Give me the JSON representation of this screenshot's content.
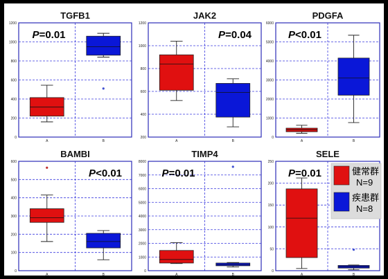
{
  "colors": {
    "group_a": "#e01010",
    "group_b": "#0a17d8",
    "frame": "#2c2cb8",
    "grid": "#3a3adf",
    "legend_bg": "#dcdcdc"
  },
  "legend": {
    "items": [
      {
        "label": "健常群",
        "n": "N=9",
        "color": "#e01010"
      },
      {
        "label": "疾患群",
        "n": "N=8",
        "color": "#0a17d8"
      }
    ]
  },
  "chart_data": [
    {
      "type": "box",
      "title": "TGFB1",
      "pvalue": "P=0.01",
      "pvalue_pos": "top-left",
      "ylim": [
        0,
        1200
      ],
      "yticks": [
        0,
        200,
        400,
        600,
        800,
        1000,
        1200
      ],
      "categories": [
        "A",
        "B"
      ],
      "series": [
        {
          "name": "A",
          "min": 160,
          "q1": 220,
          "median": 315,
          "q3": 415,
          "max": 545,
          "outliers": []
        },
        {
          "name": "B",
          "min": 840,
          "q1": 860,
          "median": 950,
          "q3": 1060,
          "max": 1090,
          "outliers": [
            510
          ]
        }
      ]
    },
    {
      "type": "box",
      "title": "JAK2",
      "pvalue": "P=0.04",
      "pvalue_pos": "top-right",
      "ylim": [
        200,
        1200
      ],
      "yticks": [
        200,
        400,
        600,
        800,
        1000,
        1200
      ],
      "categories": [
        "A",
        "B"
      ],
      "series": [
        {
          "name": "A",
          "min": 520,
          "q1": 610,
          "median": 840,
          "q3": 920,
          "max": 1040,
          "outliers": []
        },
        {
          "name": "B",
          "min": 290,
          "q1": 375,
          "median": 590,
          "q3": 670,
          "max": 710,
          "outliers": []
        }
      ]
    },
    {
      "type": "box",
      "title": "PDGFA",
      "pvalue": "P<0.01",
      "pvalue_pos": "top-left",
      "ylim": [
        0,
        6000
      ],
      "yticks": [
        0,
        1000,
        2000,
        3000,
        4000,
        5000,
        6000
      ],
      "categories": [
        "A",
        "B"
      ],
      "series": [
        {
          "name": "A",
          "min": 200,
          "q1": 280,
          "median": 380,
          "q3": 470,
          "max": 620,
          "outliers": []
        },
        {
          "name": "B",
          "min": 760,
          "q1": 2200,
          "median": 3100,
          "q3": 4150,
          "max": 5350,
          "outliers": []
        }
      ]
    },
    {
      "type": "box",
      "title": "BAMBI",
      "pvalue": "P<0.01",
      "pvalue_pos": "top-right",
      "ylim": [
        0,
        600
      ],
      "yticks": [
        0,
        100,
        200,
        300,
        400,
        500,
        600
      ],
      "categories": [
        "A",
        "B"
      ],
      "series": [
        {
          "name": "A",
          "min": 160,
          "q1": 265,
          "median": 290,
          "q3": 340,
          "max": 415,
          "outliers": [
            565
          ]
        },
        {
          "name": "B",
          "min": 60,
          "q1": 125,
          "median": 160,
          "q3": 205,
          "max": 220,
          "outliers": []
        }
      ]
    },
    {
      "type": "box",
      "title": "TIMP4",
      "pvalue": "P=0.01",
      "pvalue_pos": "top-left",
      "ylim": [
        0,
        8000
      ],
      "yticks": [
        0,
        1000,
        2000,
        3000,
        4000,
        5000,
        6000,
        7000,
        8000
      ],
      "categories": [
        "A",
        "B"
      ],
      "series": [
        {
          "name": "A",
          "min": 520,
          "q1": 560,
          "median": 820,
          "q3": 1480,
          "max": 2050,
          "outliers": []
        },
        {
          "name": "B",
          "min": 270,
          "q1": 360,
          "median": 450,
          "q3": 560,
          "max": 600,
          "outliers": [
            7600
          ]
        }
      ]
    },
    {
      "type": "box",
      "title": "SELE",
      "pvalue": "P=0.01",
      "pvalue_pos": "top-left",
      "ylim": [
        0,
        250
      ],
      "yticks": [
        0,
        50,
        100,
        150,
        200,
        250
      ],
      "categories": [
        "A",
        "B"
      ],
      "series": [
        {
          "name": "A",
          "min": 5,
          "q1": 30,
          "median": 120,
          "q3": 187,
          "max": 212,
          "outliers": []
        },
        {
          "name": "B",
          "min": 2,
          "q1": 6,
          "median": 9,
          "q3": 12,
          "max": 13,
          "outliers": [
            48
          ]
        }
      ]
    }
  ]
}
